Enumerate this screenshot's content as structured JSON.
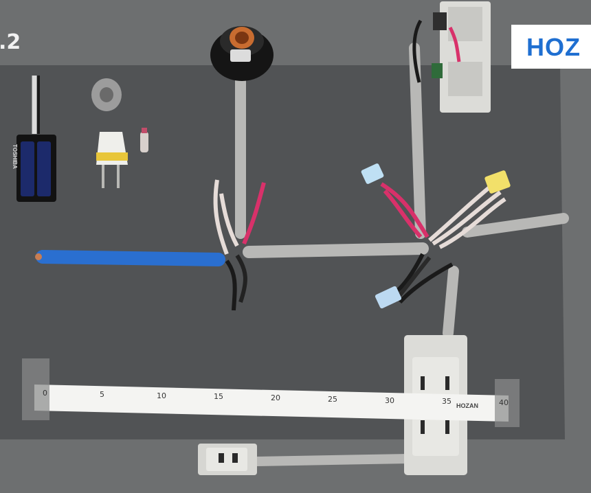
{
  "scene": {
    "description_text": {
      "episode_label": ".2",
      "banner_text": "HOZ",
      "battery_brand": "TOSHIBA",
      "ruler_brand": "HOZAN",
      "ruler_numbers": [
        "0",
        "5",
        "10",
        "15",
        "20",
        "25",
        "30",
        "35",
        "40"
      ]
    },
    "colors": {
      "board": "#505254",
      "background": "#6d6f70",
      "blue_cable": "#2a6fd0",
      "gray_cable": "#b8b8b6",
      "red_wire": "#d8316a",
      "black_wire": "#1a1a1a",
      "white_wire": "#e6e0dd"
    }
  }
}
